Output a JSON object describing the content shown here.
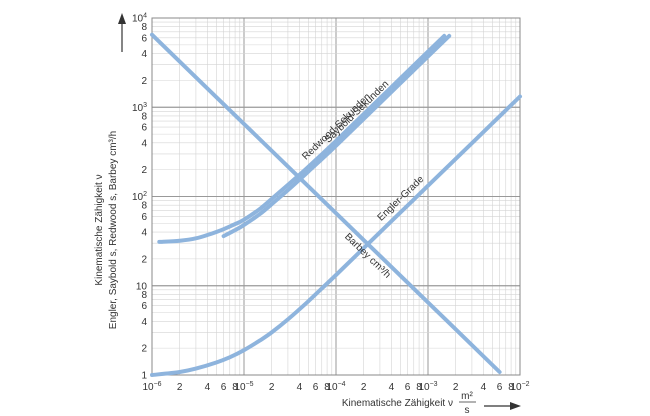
{
  "chart_data": {
    "type": "line",
    "title": "",
    "xlabel": "Kinematische Zähigkeit ν",
    "xunit": {
      "numerator": "m²",
      "denominator": "s"
    },
    "ylabel_line1": "Kinematische Zähigkeit ν",
    "ylabel_line2": "Engler, Saybold s, Redwood s, Barbey cm³/h",
    "x_scale": "log",
    "y_scale": "log",
    "xlim": [
      1e-06,
      0.01
    ],
    "ylim": [
      1,
      10000
    ],
    "grid": true,
    "x_major_ticks": [
      {
        "value": 1e-06,
        "mantissa": "10",
        "exp": "−6"
      },
      {
        "value": 1e-05,
        "mantissa": "10",
        "exp": "−5"
      },
      {
        "value": 0.0001,
        "mantissa": "10",
        "exp": "−4"
      },
      {
        "value": 0.001,
        "mantissa": "10",
        "exp": "−3"
      },
      {
        "value": 0.01,
        "mantissa": "10",
        "exp": "−2"
      }
    ],
    "x_minor_labels": [
      {
        "value": 2e-06,
        "label": "2"
      },
      {
        "value": 4e-06,
        "label": "4"
      },
      {
        "value": 6e-06,
        "label": "6"
      },
      {
        "value": 8e-06,
        "label": "8"
      },
      {
        "value": 2e-05,
        "label": "2"
      },
      {
        "value": 4e-05,
        "label": "4"
      },
      {
        "value": 6e-05,
        "label": "6"
      },
      {
        "value": 8e-05,
        "label": "8"
      },
      {
        "value": 0.0002,
        "label": "2"
      },
      {
        "value": 0.0004,
        "label": "4"
      },
      {
        "value": 0.0006,
        "label": "6"
      },
      {
        "value": 0.0008,
        "label": "8"
      },
      {
        "value": 0.002,
        "label": "2"
      },
      {
        "value": 0.004,
        "label": "4"
      },
      {
        "value": 0.006,
        "label": "6"
      },
      {
        "value": 0.008,
        "label": "8"
      }
    ],
    "y_major_ticks": [
      {
        "value": 1,
        "mantissa": "1",
        "exp": ""
      },
      {
        "value": 10,
        "mantissa": "10",
        "exp": ""
      },
      {
        "value": 100,
        "mantissa": "10",
        "exp": "2"
      },
      {
        "value": 1000,
        "mantissa": "10",
        "exp": "3"
      },
      {
        "value": 10000,
        "mantissa": "10",
        "exp": "4"
      }
    ],
    "y_minor_labels": [
      {
        "value": 2,
        "label": "2"
      },
      {
        "value": 4,
        "label": "4"
      },
      {
        "value": 6,
        "label": "6"
      },
      {
        "value": 8,
        "label": "8"
      },
      {
        "value": 20,
        "label": "2"
      },
      {
        "value": 40,
        "label": "4"
      },
      {
        "value": 60,
        "label": "6"
      },
      {
        "value": 80,
        "label": "8"
      },
      {
        "value": 200,
        "label": "2"
      },
      {
        "value": 400,
        "label": "4"
      },
      {
        "value": 600,
        "label": "6"
      },
      {
        "value": 800,
        "label": "8"
      },
      {
        "value": 2000,
        "label": "2"
      },
      {
        "value": 4000,
        "label": "4"
      },
      {
        "value": 6000,
        "label": "6"
      },
      {
        "value": 8000,
        "label": "8"
      }
    ],
    "series": [
      {
        "name": "Redwood-Sekunden",
        "x": [
          1.2e-06,
          2e-06,
          3e-06,
          4e-06,
          5e-06,
          6e-06,
          8e-06,
          1e-05,
          1.5e-05,
          2e-05,
          3e-05,
          5e-05,
          0.0001,
          0.0003,
          0.001,
          0.0015
        ],
        "y": [
          31,
          32,
          34,
          37,
          40,
          43,
          49,
          55,
          73,
          94,
          135,
          215,
          420,
          1260,
          4200,
          6300
        ]
      },
      {
        "name": "Saybold-Sekunden",
        "x": [
          6e-06,
          8e-06,
          1e-05,
          1.5e-05,
          2e-05,
          3e-05,
          5e-05,
          0.0001,
          0.0003,
          0.001,
          0.0017
        ],
        "y": [
          36,
          42,
          48,
          64,
          82,
          118,
          190,
          370,
          1110,
          3700,
          6300
        ]
      },
      {
        "name": "Engler-Grade",
        "x": [
          1e-06,
          2e-06,
          3e-06,
          5e-06,
          7e-06,
          1e-05,
          1.5e-05,
          2e-05,
          3e-05,
          5e-05,
          7e-05,
          0.0001,
          0.0002,
          0.0005,
          0.001,
          0.003,
          0.01
        ],
        "y": [
          1.0,
          1.08,
          1.18,
          1.38,
          1.58,
          1.9,
          2.45,
          3.0,
          4.2,
          6.7,
          9.3,
          13.2,
          26.4,
          66,
          132,
          396,
          1320
        ]
      },
      {
        "name": "Barbey cm³/h",
        "x": [
          1e-06,
          1e-05,
          0.0001,
          0.001,
          0.006
        ],
        "y": [
          6500,
          650,
          65,
          6.5,
          1.08
        ]
      }
    ]
  }
}
